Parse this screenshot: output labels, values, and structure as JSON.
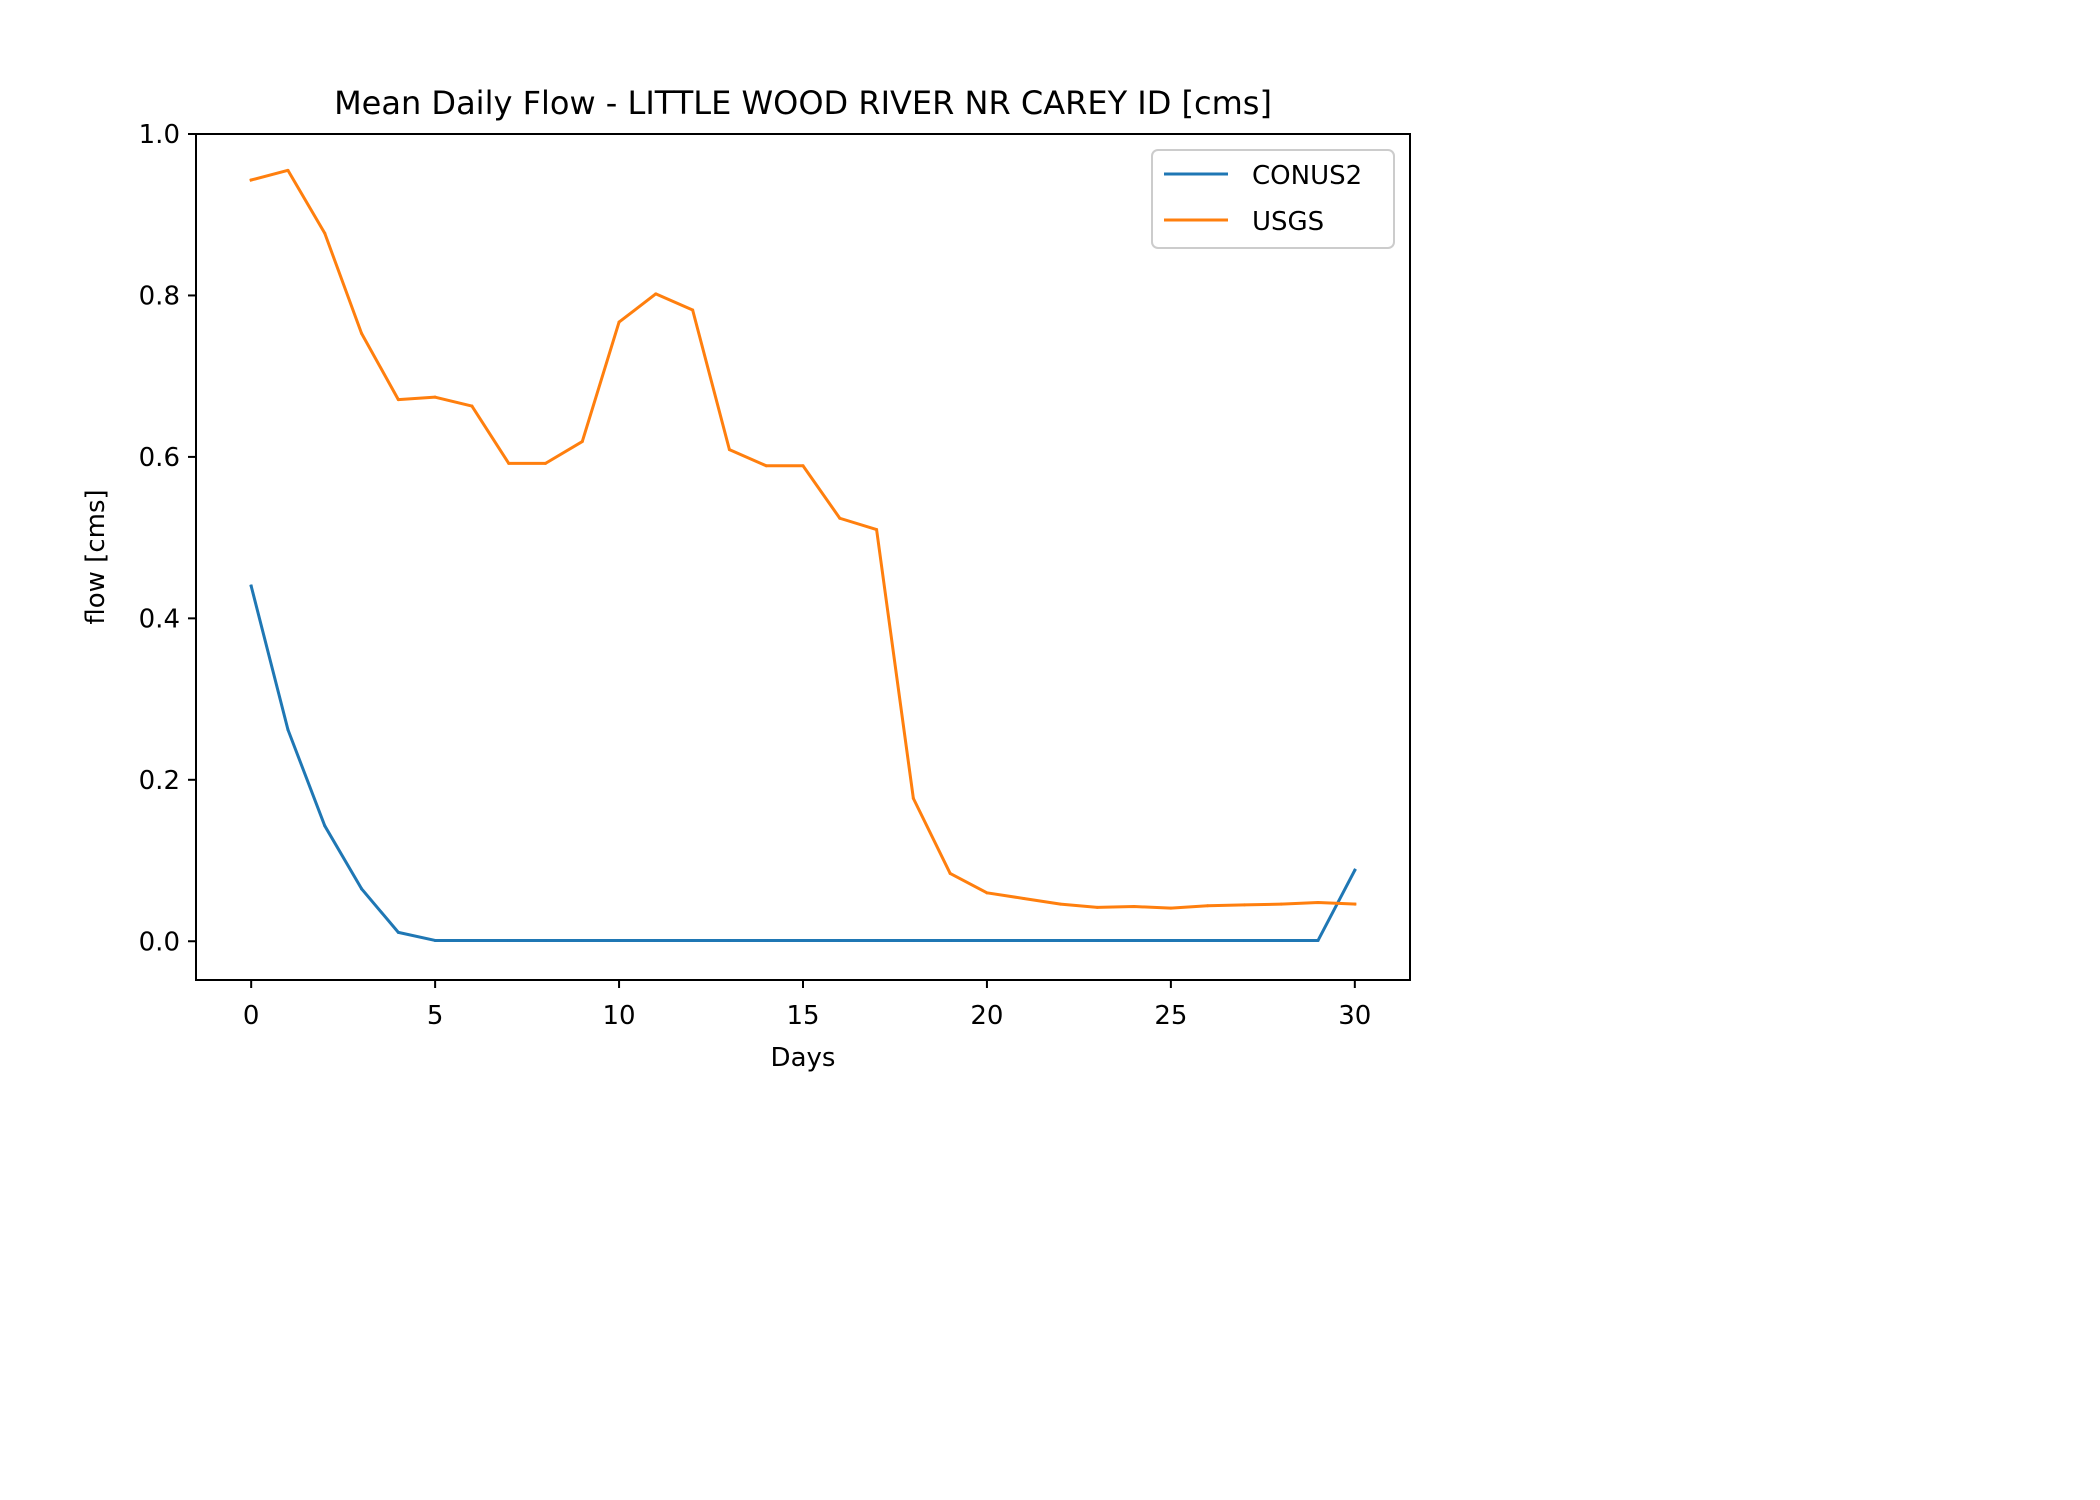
{
  "chart_data": {
    "type": "line",
    "title": "Mean Daily Flow - LITTLE WOOD RIVER NR CAREY ID [cms]",
    "xlabel": "Days",
    "ylabel": "flow [cms]",
    "xlim": [
      -1.5,
      31.5
    ],
    "ylim": [
      -0.048,
      1.0
    ],
    "xticks": [
      0,
      5,
      10,
      15,
      20,
      25,
      30
    ],
    "xtick_labels": [
      "0",
      "5",
      "10",
      "15",
      "20",
      "25",
      "30"
    ],
    "yticks": [
      0.0,
      0.2,
      0.4,
      0.6,
      0.8,
      1.0
    ],
    "ytick_labels": [
      "0.0",
      "0.2",
      "0.4",
      "0.6",
      "0.8",
      "1.0"
    ],
    "grid": false,
    "legend_position": "top-right",
    "x": [
      0,
      1,
      2,
      3,
      4,
      5,
      6,
      7,
      8,
      9,
      10,
      11,
      12,
      13,
      14,
      15,
      16,
      17,
      18,
      19,
      20,
      21,
      22,
      23,
      24,
      25,
      26,
      27,
      28,
      29,
      30
    ],
    "series": [
      {
        "name": "CONUS2",
        "color": "#1f77b4",
        "values": [
          0.44,
          0.262,
          0.143,
          0.065,
          0.011,
          0.001,
          0.001,
          0.001,
          0.001,
          0.001,
          0.001,
          0.001,
          0.001,
          0.001,
          0.001,
          0.001,
          0.001,
          0.001,
          0.001,
          0.001,
          0.001,
          0.001,
          0.001,
          0.001,
          0.001,
          0.001,
          0.001,
          0.001,
          0.001,
          0.001,
          0.088
        ]
      },
      {
        "name": "USGS",
        "color": "#ff7f0e",
        "values": [
          0.943,
          0.955,
          0.877,
          0.753,
          0.671,
          0.674,
          0.663,
          0.592,
          0.592,
          0.619,
          0.767,
          0.802,
          0.782,
          0.609,
          0.589,
          0.589,
          0.524,
          0.51,
          0.177,
          0.084,
          0.06,
          0.053,
          0.046,
          0.042,
          0.043,
          0.041,
          0.044,
          0.045,
          0.046,
          0.048,
          0.046
        ]
      }
    ]
  }
}
